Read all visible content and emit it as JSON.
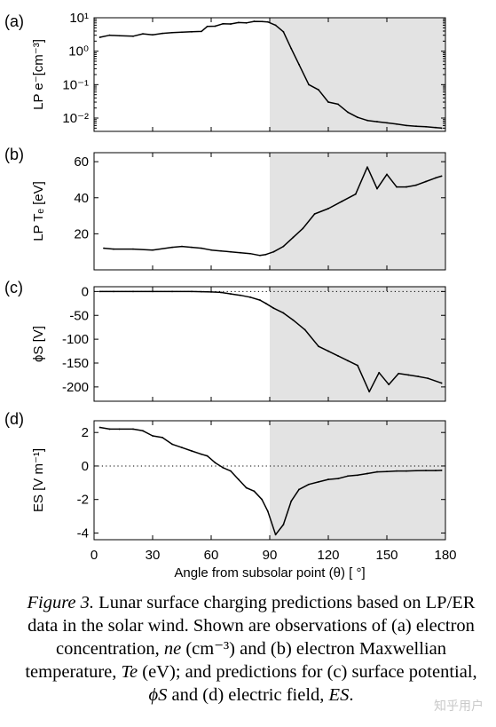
{
  "chart_data": [
    {
      "panel": "(a)",
      "type": "line",
      "ylabel": "LP e⁻[cm⁻³]",
      "yscale": "log",
      "ylim": [
        0.004,
        10
      ],
      "yticks": [
        0.01,
        0.1,
        1,
        10
      ],
      "ytick_labels": [
        "10⁻²",
        "10⁻¹",
        "10⁰",
        "10¹"
      ],
      "xlim": [
        0,
        180
      ],
      "shaded_region": [
        90,
        180
      ],
      "x": [
        3,
        8,
        13,
        20,
        25,
        30,
        35,
        40,
        45,
        50,
        55,
        58,
        62,
        66,
        70,
        74,
        78,
        82,
        86,
        89,
        93,
        97,
        101,
        105,
        110,
        115,
        120,
        125,
        130,
        135,
        140,
        145,
        150,
        155,
        160,
        165,
        170,
        175,
        178
      ],
      "y": [
        2.6,
        3.0,
        2.9,
        2.8,
        3.3,
        3.1,
        3.4,
        3.6,
        3.7,
        3.8,
        3.9,
        5.5,
        5.6,
        6.6,
        6.5,
        7.2,
        7.0,
        7.8,
        7.7,
        7.5,
        6.0,
        3.8,
        1.2,
        0.4,
        0.1,
        0.07,
        0.03,
        0.026,
        0.015,
        0.0105,
        0.0085,
        0.0078,
        0.0072,
        0.0066,
        0.006,
        0.0057,
        0.0055,
        0.0052,
        0.005
      ]
    },
    {
      "panel": "(b)",
      "type": "line",
      "ylabel": "LP Tₑ [eV]",
      "ylim": [
        0,
        65
      ],
      "yticks": [
        20,
        40,
        60
      ],
      "ytick_labels": [
        "20",
        "40",
        "60"
      ],
      "xlim": [
        0,
        180
      ],
      "shaded_region": [
        90,
        180
      ],
      "x": [
        5,
        10,
        20,
        30,
        40,
        45,
        50,
        55,
        60,
        65,
        70,
        75,
        80,
        85,
        88,
        92,
        97,
        102,
        107,
        113,
        120,
        127,
        134,
        140,
        145,
        150,
        155,
        160,
        165,
        170,
        175,
        178
      ],
      "y": [
        12,
        11.5,
        11.5,
        11,
        12.5,
        13,
        12.5,
        12,
        11,
        10.5,
        10,
        9.5,
        9,
        8,
        8.5,
        10,
        13,
        18,
        23,
        31,
        34,
        38,
        42,
        57,
        45,
        53,
        46,
        46,
        47,
        49,
        51,
        52
      ]
    },
    {
      "panel": "(c)",
      "type": "line",
      "ylabel": "ϕS [V]",
      "ylim": [
        -230,
        10
      ],
      "yticks": [
        0,
        -50,
        -100,
        -150,
        -200
      ],
      "ytick_labels": [
        "0",
        "-50",
        "-100",
        "-150",
        "-200"
      ],
      "xlim": [
        0,
        180
      ],
      "shaded_region": [
        90,
        180
      ],
      "reference_line": 0,
      "x": [
        3,
        10,
        20,
        30,
        40,
        50,
        55,
        60,
        65,
        70,
        75,
        80,
        85,
        88,
        92,
        97,
        102,
        108,
        115,
        120,
        125,
        130,
        135,
        141,
        146,
        151,
        156,
        161,
        166,
        171,
        178
      ],
      "y": [
        0,
        0,
        0,
        0,
        0,
        0,
        -0.5,
        -1,
        -2,
        -5,
        -8,
        -12,
        -18,
        -25,
        -35,
        -45,
        -60,
        -80,
        -115,
        -125,
        -135,
        -145,
        -155,
        -210,
        -170,
        -195,
        -172,
        -175,
        -178,
        -182,
        -192
      ]
    },
    {
      "panel": "(d)",
      "type": "line",
      "ylabel": "ES [V m⁻¹]",
      "ylim": [
        -4.4,
        2.7
      ],
      "yticks": [
        2,
        0,
        -2,
        -4
      ],
      "ytick_labels": [
        "2",
        "0",
        "-2",
        "-4"
      ],
      "xlim": [
        0,
        180
      ],
      "xticks": [
        0,
        30,
        60,
        90,
        120,
        150,
        180
      ],
      "xtick_labels": [
        "0",
        "30",
        "60",
        "90",
        "120",
        "150",
        "180"
      ],
      "xlabel": "Angle from subsolar point (θ) [ °]",
      "shaded_region": [
        90,
        180
      ],
      "reference_line": 0,
      "x": [
        3,
        8,
        13,
        20,
        25,
        30,
        35,
        40,
        45,
        50,
        55,
        58,
        62,
        66,
        70,
        74,
        78,
        82,
        86,
        89,
        93,
        97,
        101,
        105,
        110,
        115,
        120,
        125,
        130,
        135,
        140,
        145,
        150,
        155,
        160,
        165,
        170,
        175,
        178
      ],
      "y": [
        2.3,
        2.2,
        2.2,
        2.2,
        2.1,
        1.8,
        1.7,
        1.3,
        1.1,
        0.9,
        0.7,
        0.6,
        0.2,
        -0.1,
        -0.3,
        -0.8,
        -1.3,
        -1.5,
        -2.0,
        -2.7,
        -4.1,
        -3.5,
        -2.1,
        -1.4,
        -1.1,
        -0.95,
        -0.8,
        -0.75,
        -0.6,
        -0.55,
        -0.45,
        -0.35,
        -0.33,
        -0.3,
        -0.3,
        -0.28,
        -0.27,
        -0.27,
        -0.26
      ]
    }
  ],
  "caption": {
    "figure_label": "Figure 3.",
    "intro": "Lunar surface charging predictions based on LP/ER data in the solar wind.  Shown are observations of (a) electron concentration, ",
    "ne_symbol": "ne",
    "ne_unit": "(cm⁻³)",
    "mid1": " and (b) electron Maxwellian temperature, ",
    "te_symbol": "Te",
    "te_unit": "(eV)",
    "mid2": "; and predictions for (c) surface potential, ",
    "phi_symbol": "ϕS",
    "mid3": " and (d) electric field, ",
    "es_symbol": "ES",
    "end": "."
  },
  "watermark": "知乎用户"
}
